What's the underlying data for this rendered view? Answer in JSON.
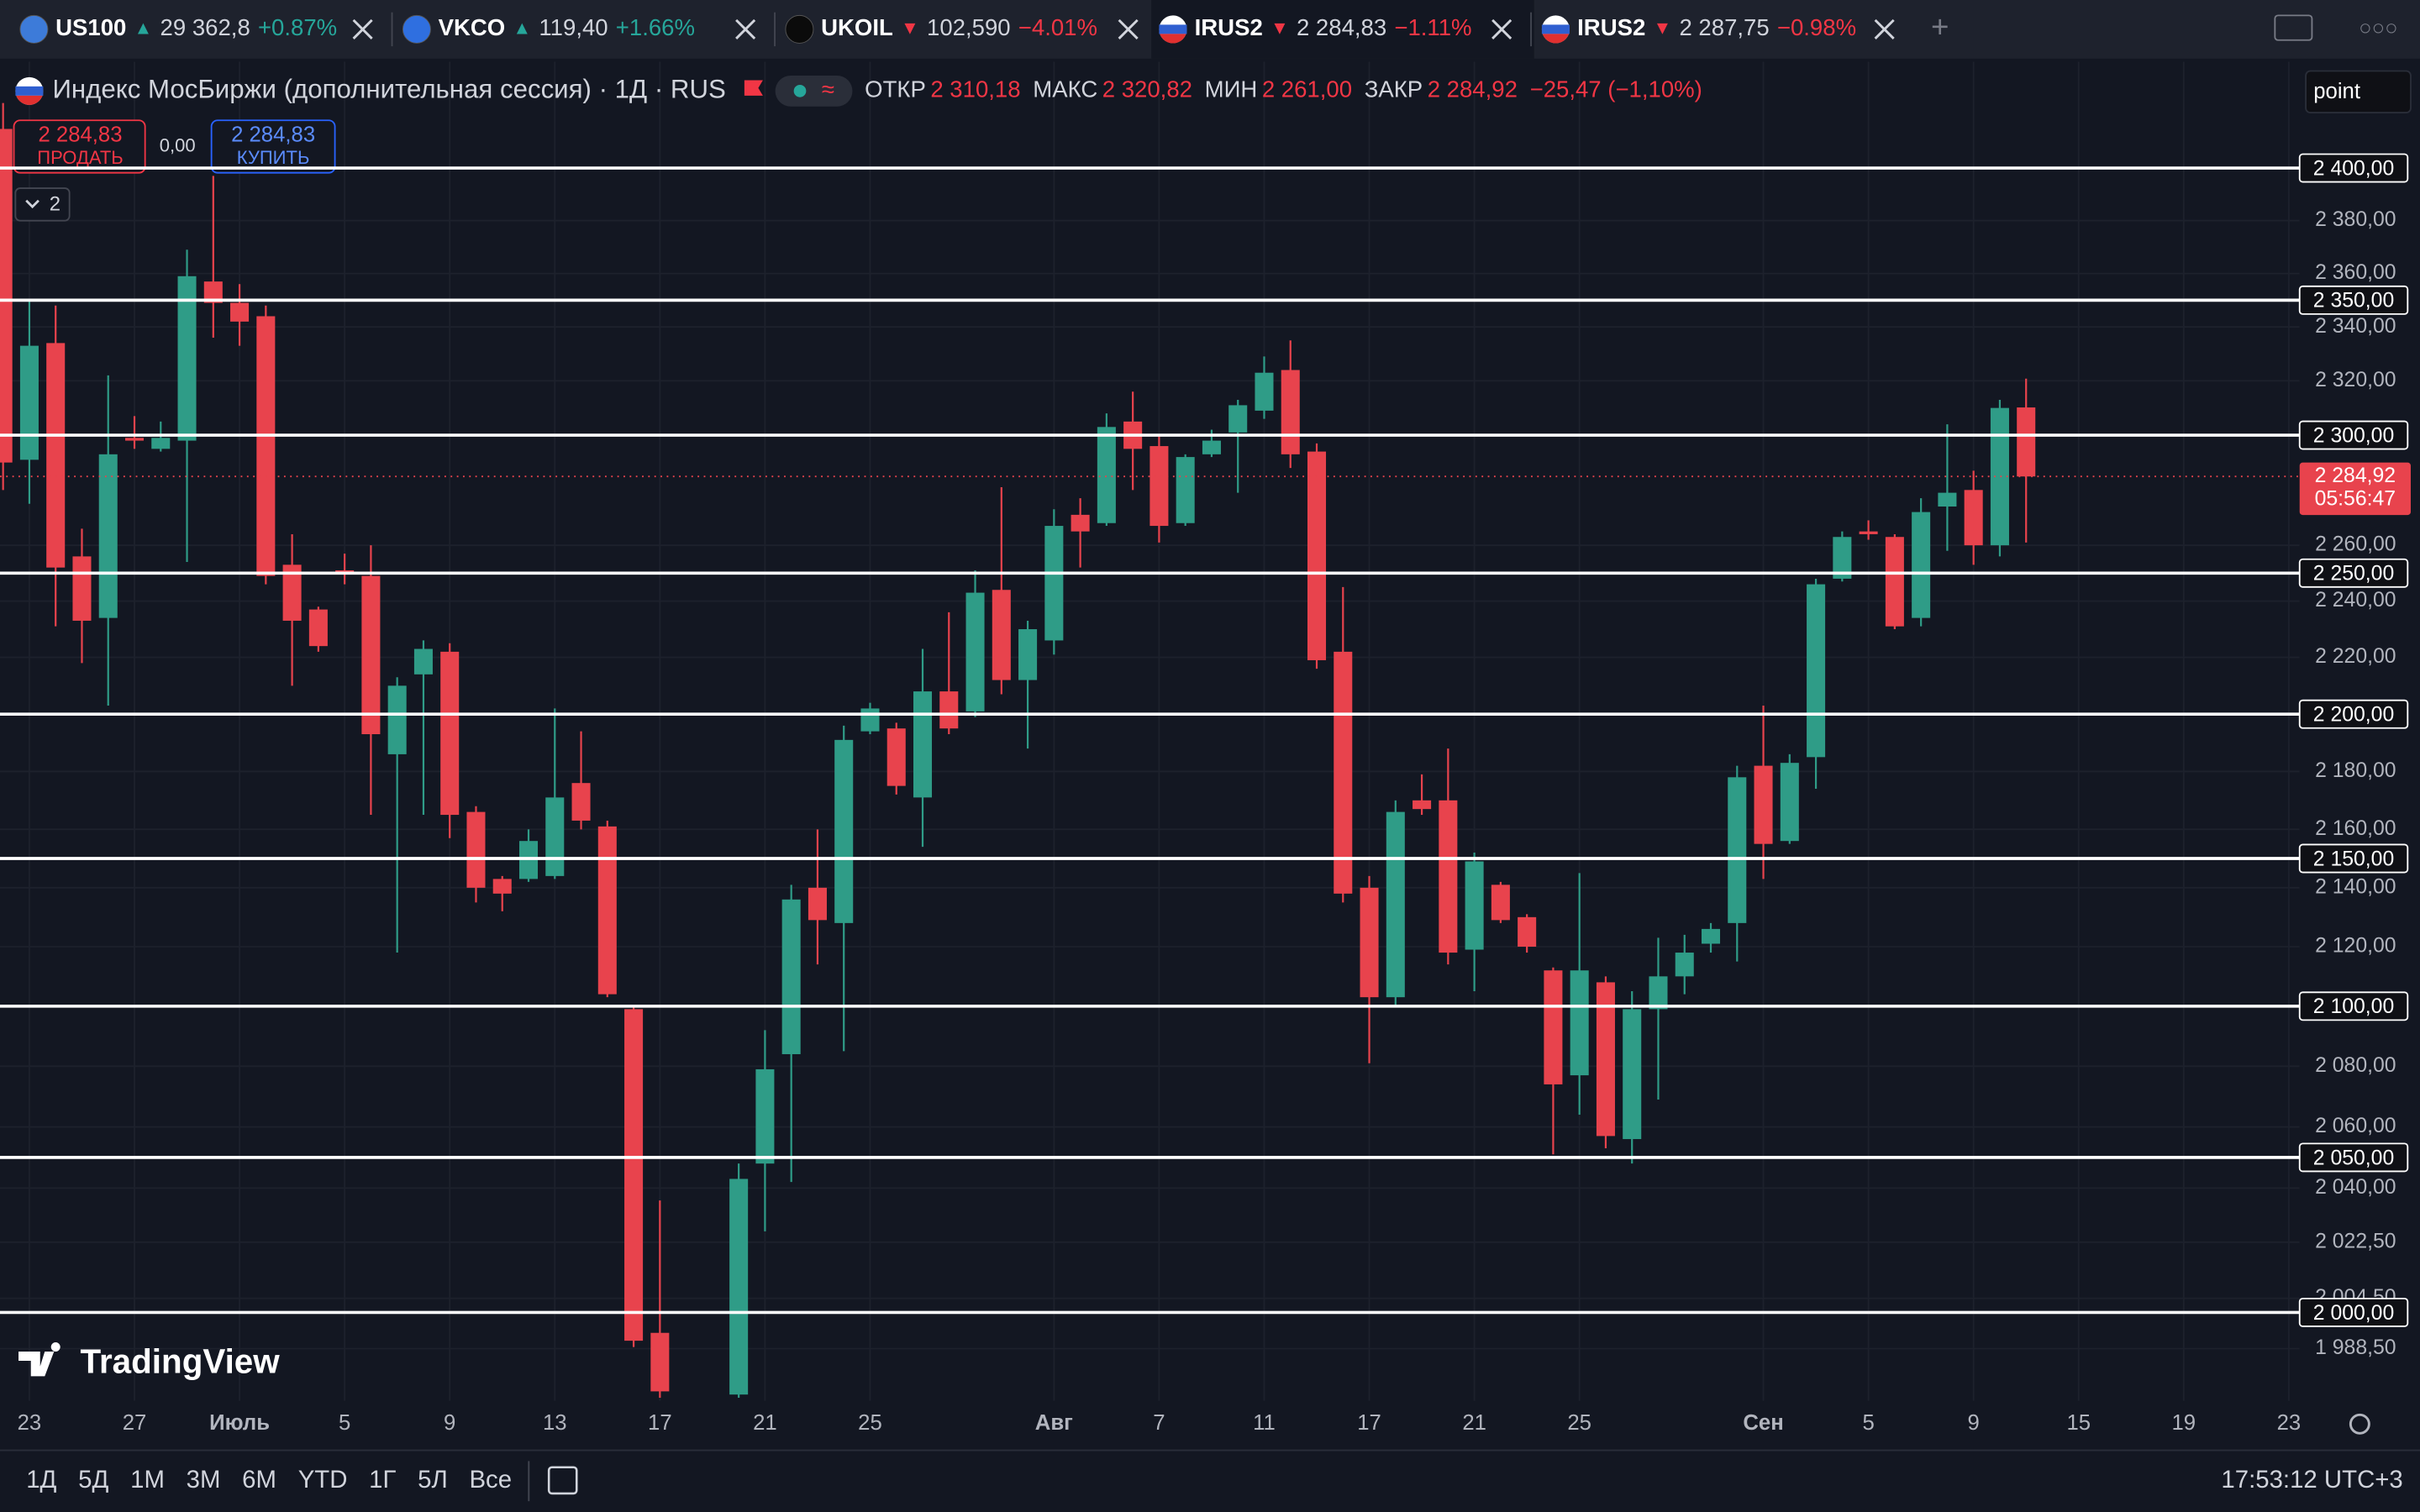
{
  "tabs": [
    {
      "symbol": "US100",
      "arrow": "▲",
      "price": "29 362,8",
      "change": "+0.87%",
      "color": "#26a69a",
      "icon_color": "#3d7bd9"
    },
    {
      "symbol": "VKCO",
      "arrow": "▲",
      "price": "119,40",
      "change": "+1.66%",
      "color": "#26a69a",
      "icon_color": "#2f6fe0"
    },
    {
      "symbol": "UKOIL",
      "arrow": "▼",
      "price": "102,590",
      "change": "−4.01%",
      "color": "#f23645",
      "icon_color": "#0b0b0b"
    },
    {
      "symbol": "IRUS2",
      "arrow": "▼",
      "price": "2 284,83",
      "change": "−1.11%",
      "color": "#f23645",
      "icon_color": "#2f5fd0"
    },
    {
      "symbol": "IRUS2",
      "arrow": "▼",
      "price": "2 287,75",
      "change": "−0.98%",
      "color": "#f23645",
      "icon_color": "#2f5fd0"
    }
  ],
  "header": {
    "title": "Индекс МосБиржи (дополнительная сессия) · 1Д · RUS",
    "ohlc": [
      {
        "label": "ОТКР",
        "value": "2 310,18"
      },
      {
        "label": "МАКС",
        "value": "2 320,82"
      },
      {
        "label": "МИН",
        "value": "2 261,00"
      },
      {
        "label": "ЗАКР",
        "value": "2 284,92"
      }
    ],
    "change": "−25,47 (−1,10%)",
    "sell": {
      "price": "2 284,83",
      "label": "ПРОДАТЬ"
    },
    "spread": "0,00",
    "buy": {
      "price": "2 284,83",
      "label": "КУПИТЬ"
    },
    "indicators": "2",
    "input": "point",
    "logo": "TradingView"
  },
  "footer": {
    "periods": [
      "1Д",
      "5Д",
      "1М",
      "3М",
      "6М",
      "YTD",
      "1Г",
      "5Л",
      "Все"
    ],
    "time": "17:53:12 UTC+3"
  },
  "chart_data": {
    "type": "candlestick",
    "log_scale": true,
    "grid": true,
    "up_color": "#2f9c87",
    "down_color": "#e8434d",
    "x": [
      null,
      "23",
      null,
      null,
      null,
      "27",
      null,
      null,
      null,
      "Июль",
      null,
      null,
      null,
      "5",
      null,
      null,
      null,
      "9",
      null,
      null,
      null,
      "13",
      null,
      null,
      null,
      "17",
      null,
      null,
      null,
      "21",
      null,
      null,
      null,
      "25",
      null,
      null,
      null,
      null,
      null,
      null,
      "Авг",
      null,
      null,
      null,
      "7",
      null,
      null,
      null,
      "11",
      null,
      null,
      null,
      "17",
      null,
      null,
      null,
      "21",
      null,
      null,
      null,
      "25",
      null,
      null,
      null,
      null,
      null,
      null,
      "Сен",
      null,
      null,
      null,
      "5",
      null,
      null,
      null,
      "9",
      null,
      null,
      null,
      "15",
      null,
      null,
      null,
      "19",
      null,
      null,
      null,
      "23"
    ],
    "open": [
      2415,
      2291,
      2334,
      2256,
      2234,
      2299,
      2295,
      2298,
      2357,
      2349,
      2344,
      2253,
      2237,
      2251,
      2249,
      2186,
      2214,
      2222,
      2166,
      2143,
      2143,
      2144,
      2176,
      2161,
      2099,
      1993.5,
      null,
      null,
      1974,
      2048,
      2084,
      2140,
      2128,
      2194,
      2195,
      2171,
      2208,
      2201,
      2244,
      2212,
      2226,
      2271,
      2268,
      2305,
      2296,
      2268,
      2293,
      2301,
      2309,
      2324,
      2294,
      2222,
      2140,
      2103,
      2170,
      2170,
      2119,
      2141,
      2130,
      2112,
      2077,
      2108,
      2056,
      2099,
      2110,
      2121,
      2128,
      2182,
      2156,
      2185,
      2248,
      2265,
      2263,
      2234,
      2274,
      2280,
      2260,
      2310.18,
      null,
      null,
      null,
      null,
      null,
      null,
      null,
      null,
      null,
      null
    ],
    "high": [
      2425,
      2350,
      2348,
      2266,
      2322,
      2307,
      2305,
      2369,
      2397,
      2356,
      2348,
      2264,
      2238,
      2257,
      2260,
      2213,
      2226,
      2225,
      2168,
      2144,
      2160,
      2202,
      2194,
      2163,
      2100,
      2036,
      null,
      null,
      2048,
      2092,
      2141,
      2160,
      2196,
      2204,
      2197,
      2223,
      2236,
      2251,
      2281,
      2233,
      2273,
      2277,
      2308,
      2316,
      2300,
      2293,
      2302,
      2313,
      2329,
      2335,
      2297,
      2245,
      2144,
      2170,
      2179,
      2188,
      2152,
      2142,
      2131,
      2113,
      2145,
      2110,
      2105,
      2123,
      2124,
      2128,
      2182,
      2203,
      2186,
      2248,
      2265,
      2269,
      2264,
      2277,
      2304,
      2287,
      2313,
      2320.82,
      null,
      null,
      null,
      null,
      null,
      null,
      null,
      null,
      null,
      null
    ],
    "low": [
      2280,
      2275,
      2231,
      2218,
      2203,
      2295,
      2294,
      2254,
      2336,
      2333,
      2246,
      2210,
      2222,
      2246,
      2165,
      2118,
      2165,
      2157,
      2135,
      2132,
      2142,
      2143,
      2160,
      2103,
      1989,
      1973,
      null,
      null,
      1973,
      2026,
      2042,
      2114,
      2085,
      2193,
      2172,
      2154,
      2193,
      2199,
      2207,
      2188,
      2221,
      2252,
      2267,
      2280,
      2261,
      2267,
      2292,
      2279,
      2306,
      2288,
      2216,
      2135,
      2081,
      2100,
      2165,
      2114,
      2105,
      2128,
      2118,
      2051,
      2064,
      2053,
      2048,
      2069,
      2104,
      2118,
      2115,
      2143,
      2155,
      2174,
      2247,
      2262,
      2230,
      2231,
      2258,
      2253,
      2256,
      2261,
      null,
      null,
      null,
      null,
      null,
      null,
      null,
      null,
      null,
      null
    ],
    "close": [
      2290,
      2333,
      2252,
      2233,
      2293,
      2298,
      2299,
      2359,
      2349,
      2342,
      2249,
      2233,
      2224,
      2250,
      2193,
      2210,
      2223,
      2165,
      2140,
      2138,
      2156,
      2171,
      2163,
      2104,
      1991,
      1975,
      null,
      null,
      2043,
      2079,
      2136,
      2129,
      2191,
      2202,
      2175,
      2208,
      2195,
      2243,
      2212,
      2230,
      2267,
      2265,
      2303,
      2295,
      2267,
      2292,
      2298,
      2311,
      2323,
      2293,
      2219,
      2138,
      2103,
      2166,
      2167,
      2118,
      2149,
      2129,
      2120,
      2074,
      2112,
      2057,
      2099,
      2110,
      2118,
      2126,
      2178,
      2155,
      2183,
      2246,
      2263,
      2264,
      2231,
      2272,
      2279,
      2260,
      2310,
      2284.92,
      null,
      null,
      null,
      null,
      null,
      null,
      null,
      null,
      null,
      null
    ],
    "ylim": [
      1972,
      2441
    ],
    "yticks": [
      {
        "value": 1988.5,
        "label": "1 988,50"
      },
      {
        "value": 2004.5,
        "label": "2 004,50"
      },
      {
        "value": 2022.5,
        "label": "2 022,50"
      },
      {
        "value": 2040,
        "label": "2 040,00"
      },
      {
        "value": 2060,
        "label": "2 060,00"
      },
      {
        "value": 2080,
        "label": "2 080,00"
      },
      {
        "value": 2120,
        "label": "2 120,00"
      },
      {
        "value": 2140,
        "label": "2 140,00"
      },
      {
        "value": 2160,
        "label": "2 160,00"
      },
      {
        "value": 2180,
        "label": "2 180,00"
      },
      {
        "value": 2220,
        "label": "2 220,00"
      },
      {
        "value": 2240,
        "label": "2 240,00"
      },
      {
        "value": 2260,
        "label": "2 260,00"
      },
      {
        "value": 2320,
        "label": "2 320,00"
      },
      {
        "value": 2340,
        "label": "2 340,00"
      },
      {
        "value": 2360,
        "label": "2 360,00"
      },
      {
        "value": 2380,
        "label": "2 380,00"
      }
    ],
    "horizontal_lines": [
      {
        "value": 2400,
        "label": "2 400,00"
      },
      {
        "value": 2350,
        "label": "2 350,00"
      },
      {
        "value": 2300,
        "label": "2 300,00"
      },
      {
        "value": 2250,
        "label": "2 250,00"
      },
      {
        "value": 2200,
        "label": "2 200,00"
      },
      {
        "value": 2150,
        "label": "2 150,00"
      },
      {
        "value": 2100,
        "label": "2 100,00"
      },
      {
        "value": 2050,
        "label": "2 050,00"
      },
      {
        "value": 2000,
        "label": "2 000,00"
      }
    ],
    "last_price": {
      "value": 2284.92,
      "label": "2 284,92"
    },
    "countdown": "05:56:47"
  }
}
